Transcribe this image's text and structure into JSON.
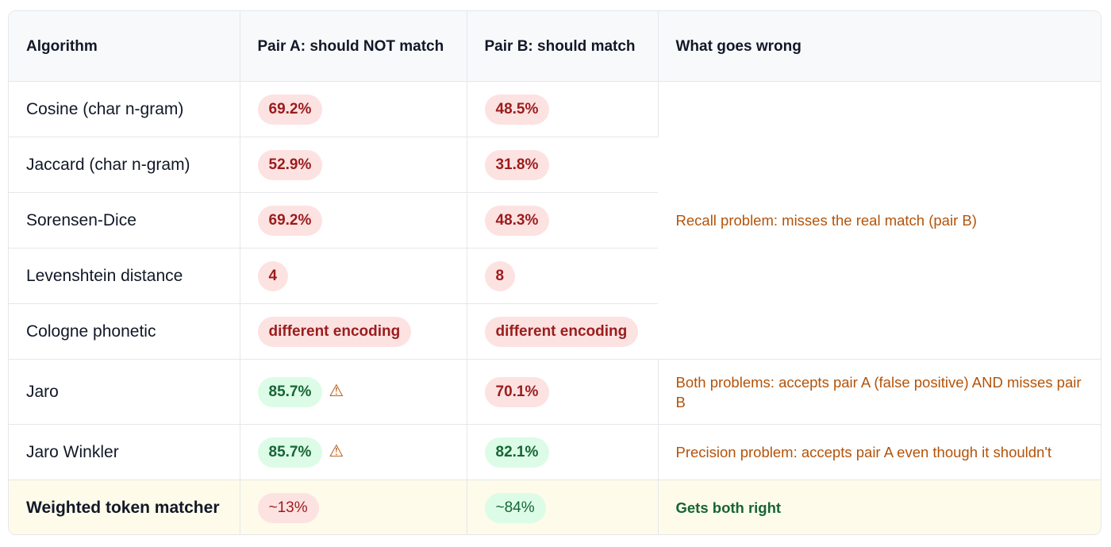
{
  "headers": {
    "algorithm": "Algorithm",
    "pair_a": "Pair A: should NOT match",
    "pair_b": "Pair B: should match",
    "what_wrong": "What goes wrong"
  },
  "rows": [
    {
      "algorithm": "Cosine (char n-gram)",
      "pair_a": "69.2%",
      "pair_b": "48.5%"
    },
    {
      "algorithm": "Jaccard (char n-gram)",
      "pair_a": "52.9%",
      "pair_b": "31.8%"
    },
    {
      "algorithm": "Sorensen-Dice",
      "pair_a": "69.2%",
      "pair_b": "48.3%"
    },
    {
      "algorithm": "Levenshtein distance",
      "pair_a": "4",
      "pair_b": "8"
    },
    {
      "algorithm": "Cologne phonetic",
      "pair_a": "different encoding",
      "pair_b": "different encoding"
    },
    {
      "algorithm": "Jaro",
      "pair_a": "85.7%",
      "pair_b": "70.1%",
      "note": "Both problems: accepts pair A (false positive) AND misses pair B"
    },
    {
      "algorithm": "Jaro Winkler",
      "pair_a": "85.7%",
      "pair_b": "82.1%",
      "note": "Precision problem: accepts pair A even though it shouldn't"
    },
    {
      "algorithm": "Weighted token matcher",
      "pair_a": "~13%",
      "pair_b": "~84%",
      "note": "Gets both right"
    }
  ],
  "group_note": "Recall problem: misses the real match (pair B)",
  "warning_glyph": "⚠",
  "colors": {
    "bad_bg": "#fde2e2",
    "bad_text": "#9b1c1c",
    "good_bg": "#dcfce7",
    "good_text": "#166534",
    "note_text": "#b45309",
    "highlight_row": "#fefbea"
  }
}
